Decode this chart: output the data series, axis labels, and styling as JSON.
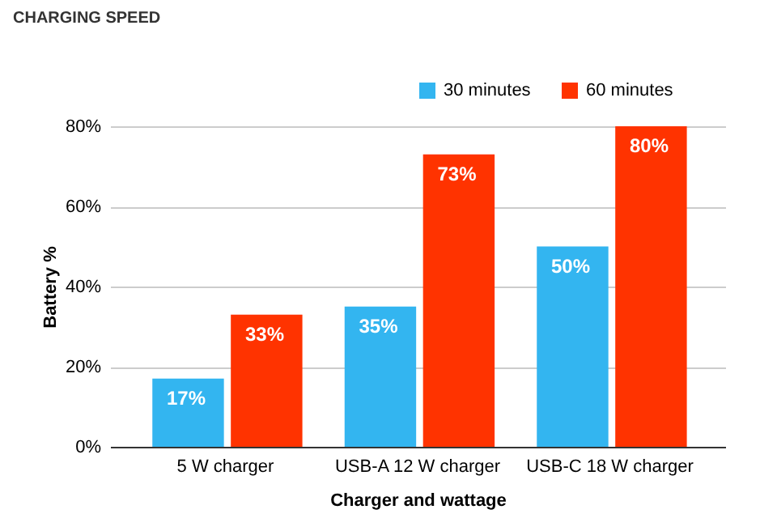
{
  "chart_data": {
    "type": "bar",
    "title": "CHARGING SPEED",
    "xlabel": "Charger and wattage",
    "ylabel": "Battery %",
    "categories": [
      "5 W charger",
      "USB-A 12 W charger",
      "USB-C 18 W charger"
    ],
    "series": [
      {
        "name": "30 minutes",
        "color": "#33b5f0",
        "values": [
          17,
          35,
          50
        ],
        "value_labels": [
          "17%",
          "35%",
          "50%"
        ]
      },
      {
        "name": "60 minutes",
        "color": "#ff3300",
        "values": [
          33,
          73,
          80
        ],
        "value_labels": [
          "33%",
          "73%",
          "80%"
        ]
      }
    ],
    "ylim": [
      0,
      80
    ],
    "yticks": [
      {
        "value": 0,
        "label": "0%"
      },
      {
        "value": 20,
        "label": "20%"
      },
      {
        "value": 40,
        "label": "40%"
      },
      {
        "value": 60,
        "label": "60%"
      },
      {
        "value": 80,
        "label": "80%"
      }
    ],
    "grid": "y",
    "legend": "top right"
  }
}
